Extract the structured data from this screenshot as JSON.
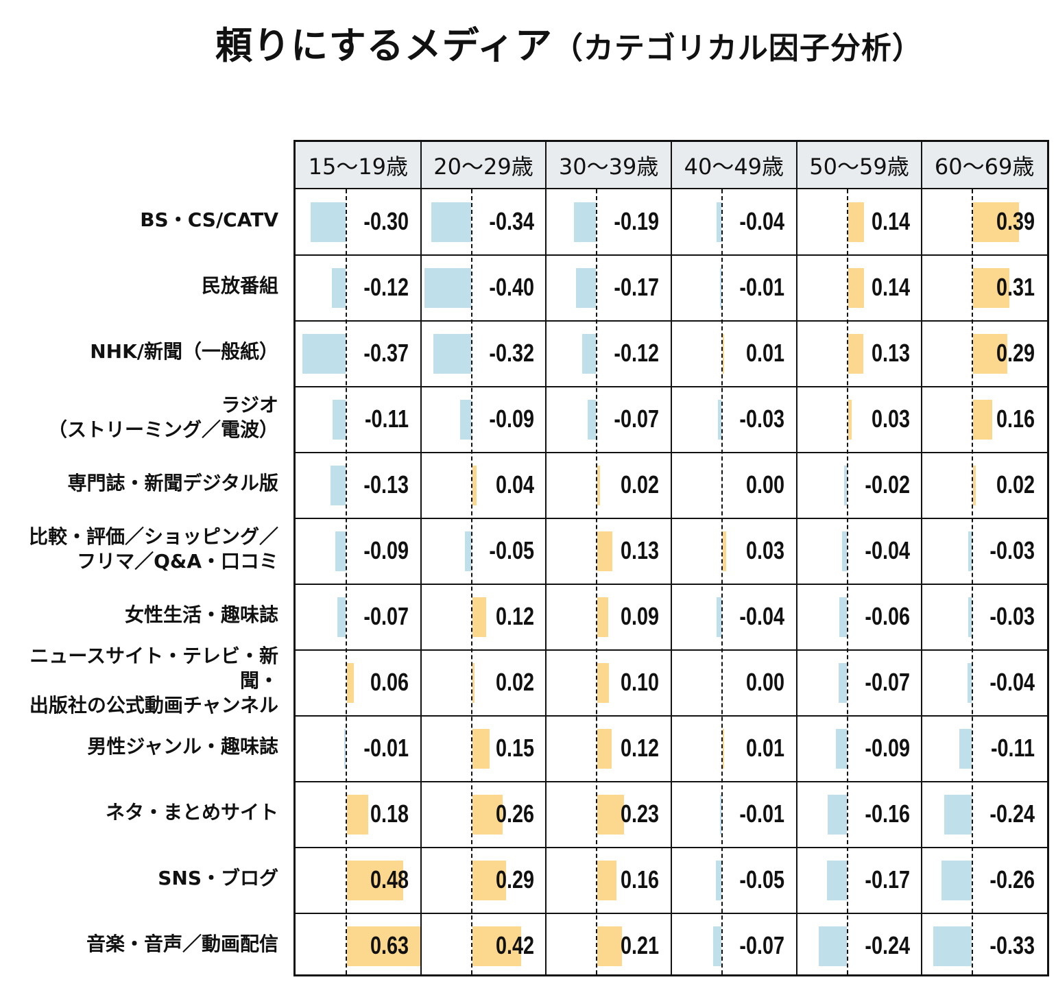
{
  "title": "頼りにするメディア",
  "subtitle": "（カテゴリカル因子分析）",
  "colors": {
    "negative": "#bfe0ea",
    "positive": "#fcd88e",
    "header": "#e8ecef"
  },
  "chart_data": {
    "type": "table",
    "title": "頼りにするメディア（カテゴリカル因子分析）",
    "columns": [
      "15〜19歳",
      "20〜29歳",
      "30〜39歳",
      "40〜49歳",
      "50〜59歳",
      "60〜69歳"
    ],
    "rows": [
      "BS・CS/CATV",
      "民放番組",
      "NHK/新聞（一般紙）",
      "ラジオ\n（ストリーミング／電波）",
      "専門誌・新聞デジタル版",
      "比較・評価／ショッピング／\nフリマ／Q&A・口コミ",
      "女性生活・趣味誌",
      "ニュースサイト・テレビ・新聞・\n出版社の公式動画チャンネル",
      "男性ジャンル・趣味誌",
      "ネタ・まとめサイト",
      "SNS・ブログ",
      "音楽・音声／動画配信"
    ],
    "values": [
      [
        "-0.30",
        "-0.34",
        "-0.19",
        "-0.04",
        "0.14",
        "0.39"
      ],
      [
        "-0.12",
        "-0.40",
        "-0.17",
        "-0.01",
        "0.14",
        "0.31"
      ],
      [
        "-0.37",
        "-0.32",
        "-0.12",
        "0.01",
        "0.13",
        "0.29"
      ],
      [
        "-0.11",
        "-0.09",
        "-0.07",
        "-0.03",
        "0.03",
        "0.16"
      ],
      [
        "-0.13",
        "0.04",
        "0.02",
        "0.00",
        "-0.02",
        "0.02"
      ],
      [
        "-0.09",
        "-0.05",
        "0.13",
        "0.03",
        "-0.04",
        "-0.03"
      ],
      [
        "-0.07",
        "0.12",
        "0.09",
        "-0.04",
        "-0.06",
        "-0.03"
      ],
      [
        "0.06",
        "0.02",
        "0.10",
        "0.00",
        "-0.07",
        "-0.04"
      ],
      [
        "-0.01",
        "0.15",
        "0.12",
        "0.01",
        "-0.09",
        "-0.11"
      ],
      [
        "0.18",
        "0.26",
        "0.23",
        "-0.01",
        "-0.16",
        "-0.24"
      ],
      [
        "0.48",
        "0.29",
        "0.16",
        "-0.05",
        "-0.17",
        "-0.26"
      ],
      [
        "0.63",
        "0.42",
        "0.21",
        "-0.07",
        "-0.24",
        "-0.33"
      ]
    ]
  }
}
